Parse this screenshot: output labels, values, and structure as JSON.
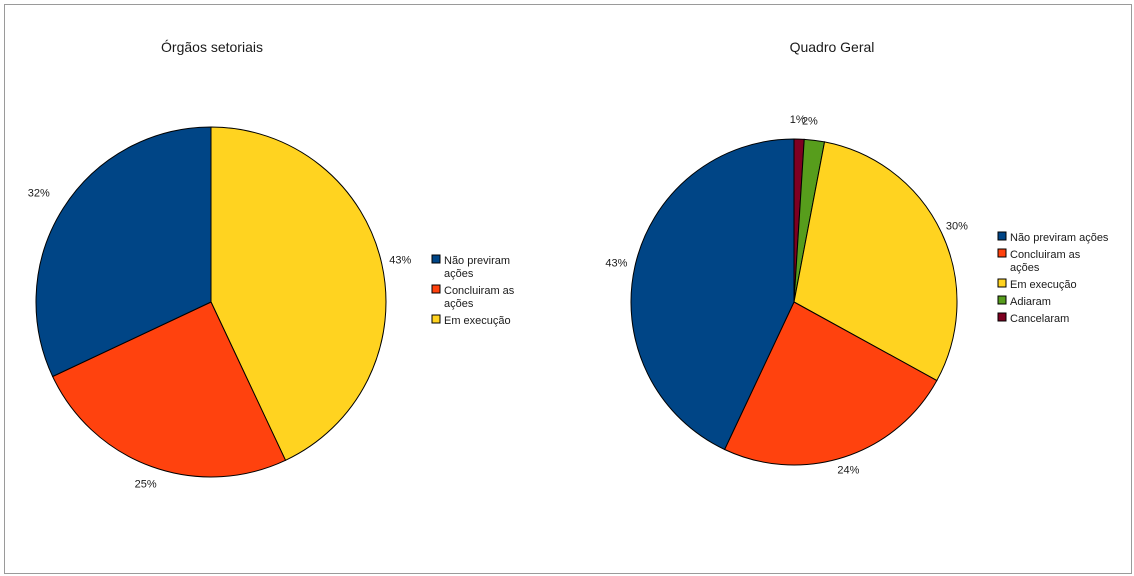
{
  "chart_data": [
    {
      "type": "pie",
      "title": "Órgãos setoriais",
      "series": [
        {
          "name": "Não previram ações",
          "value": 32,
          "label": "32%",
          "color": "#004586"
        },
        {
          "name": "Concluiram as ações",
          "value": 25,
          "label": "25%",
          "color": "#ff420e"
        },
        {
          "name": "Em execução",
          "value": 43,
          "label": "43%",
          "color": "#ffd320"
        }
      ],
      "legend": {
        "placement": "right",
        "entries": [
          [
            "Não previram",
            "ações"
          ],
          [
            "Concluiram as",
            "ações"
          ],
          [
            "Em execução"
          ]
        ]
      }
    },
    {
      "type": "pie",
      "title": "Quadro Geral",
      "series": [
        {
          "name": "Não previram ações",
          "value": 43,
          "label": "43%",
          "color": "#004586"
        },
        {
          "name": "Concluiram as ações",
          "value": 24,
          "label": "24%",
          "color": "#ff420e"
        },
        {
          "name": "Em execução",
          "value": 30,
          "label": "30%",
          "color": "#ffd320"
        },
        {
          "name": "Adiaram",
          "value": 2,
          "label": "2%",
          "color": "#579d1c"
        },
        {
          "name": "Cancelaram",
          "value": 1,
          "label": "1%",
          "color": "#7e0021"
        }
      ],
      "legend": {
        "placement": "right",
        "entries": [
          [
            "Não previram ações"
          ],
          [
            "Concluiram as",
            "ações"
          ],
          [
            "Em execução"
          ],
          [
            "Adiaram"
          ],
          [
            "Cancelaram"
          ]
        ]
      }
    }
  ]
}
